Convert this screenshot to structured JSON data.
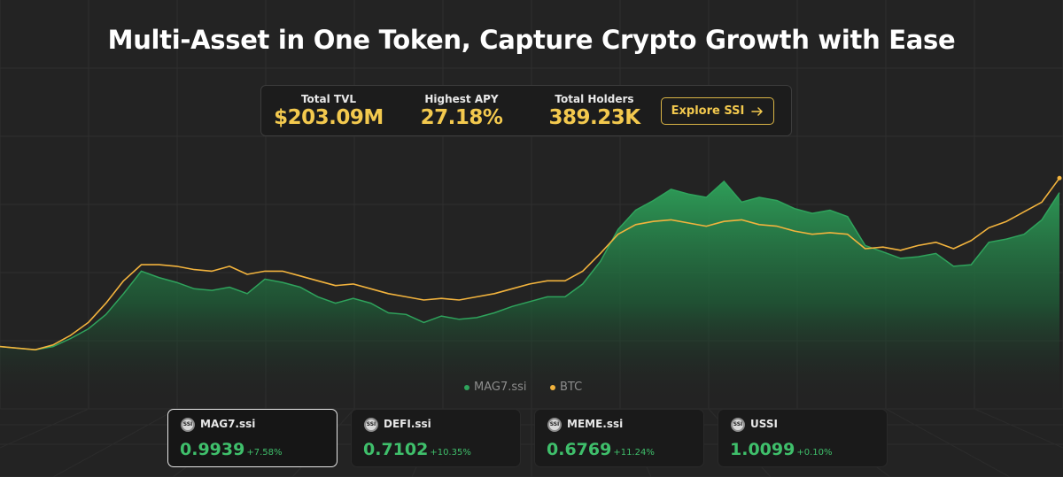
{
  "page": {
    "title": "Multi-Asset in One Token, Capture Crypto Growth with Ease"
  },
  "stats": {
    "tvl_label": "Total TVL",
    "tvl_value": "$203.09M",
    "apy_label": "Highest APY",
    "apy_value": "27.18%",
    "holders_label": "Total Holders",
    "holders_value": "389.23K",
    "explore_label": "Explore SSI",
    "explore_icon": "arrow-right-icon"
  },
  "legend": [
    {
      "name": "MAG7.ssi",
      "color": "#2fa35c"
    },
    {
      "name": "BTC",
      "color": "#f2b33d"
    }
  ],
  "cards": [
    {
      "icon_text": "SSI",
      "name": "MAG7.ssi",
      "price": "0.9939",
      "change": "+7.58%",
      "selected": true
    },
    {
      "icon_text": "SSI",
      "name": "DEFI.ssi",
      "price": "0.7102",
      "change": "+10.35%",
      "selected": false
    },
    {
      "icon_text": "SSI",
      "name": "MEME.ssi",
      "price": "0.6769",
      "change": "+11.24%",
      "selected": false
    },
    {
      "icon_text": "SSI",
      "name": "USSI",
      "price": "1.0099",
      "change": "+0.10%",
      "selected": false
    }
  ],
  "colors": {
    "background": "#232323",
    "accent_gold": "#f3c94e",
    "mag7_green": "#2fa35c",
    "btc_orange": "#f2b33d",
    "positive": "#3fbf6b"
  },
  "chart_data": {
    "type": "area",
    "title": "",
    "xlabel": "",
    "ylabel": "",
    "grid": true,
    "legend_position": "bottom-center",
    "ylim": [
      0,
      1.6
    ],
    "x": [
      0,
      1,
      2,
      3,
      4,
      5,
      6,
      7,
      8,
      9,
      10,
      11,
      12,
      13,
      14,
      15,
      16,
      17,
      18,
      19,
      20,
      21,
      22,
      23,
      24,
      25,
      26,
      27,
      28,
      29,
      30,
      31,
      32,
      33,
      34,
      35,
      36,
      37,
      38,
      39,
      40,
      41,
      42,
      43,
      44,
      45,
      46,
      47,
      48,
      49,
      50,
      51,
      52,
      53,
      54,
      55,
      56,
      57,
      58,
      59,
      60
    ],
    "series": [
      {
        "name": "MAG7.ssi",
        "values": [
          0.35,
          0.34,
          0.33,
          0.35,
          0.4,
          0.46,
          0.55,
          0.68,
          0.82,
          0.78,
          0.75,
          0.71,
          0.7,
          0.72,
          0.68,
          0.77,
          0.75,
          0.72,
          0.66,
          0.62,
          0.65,
          0.62,
          0.56,
          0.55,
          0.5,
          0.54,
          0.52,
          0.53,
          0.56,
          0.6,
          0.63,
          0.66,
          0.66,
          0.74,
          0.88,
          1.08,
          1.2,
          1.26,
          1.33,
          1.3,
          1.28,
          1.38,
          1.25,
          1.28,
          1.26,
          1.21,
          1.18,
          1.2,
          1.16,
          0.98,
          0.94,
          0.9,
          0.91,
          0.93,
          0.85,
          0.86,
          1.0,
          1.02,
          1.05,
          1.14,
          1.31
        ]
      },
      {
        "name": "BTC",
        "values": [
          0.35,
          0.34,
          0.33,
          0.36,
          0.42,
          0.5,
          0.62,
          0.76,
          0.86,
          0.86,
          0.85,
          0.83,
          0.82,
          0.85,
          0.8,
          0.82,
          0.82,
          0.79,
          0.76,
          0.73,
          0.74,
          0.71,
          0.68,
          0.66,
          0.64,
          0.65,
          0.64,
          0.66,
          0.68,
          0.71,
          0.74,
          0.76,
          0.76,
          0.82,
          0.93,
          1.05,
          1.11,
          1.13,
          1.14,
          1.12,
          1.1,
          1.13,
          1.14,
          1.11,
          1.1,
          1.07,
          1.05,
          1.06,
          1.05,
          0.96,
          0.97,
          0.95,
          0.98,
          1.0,
          0.96,
          1.01,
          1.09,
          1.13,
          1.19,
          1.25,
          1.4
        ]
      }
    ]
  }
}
